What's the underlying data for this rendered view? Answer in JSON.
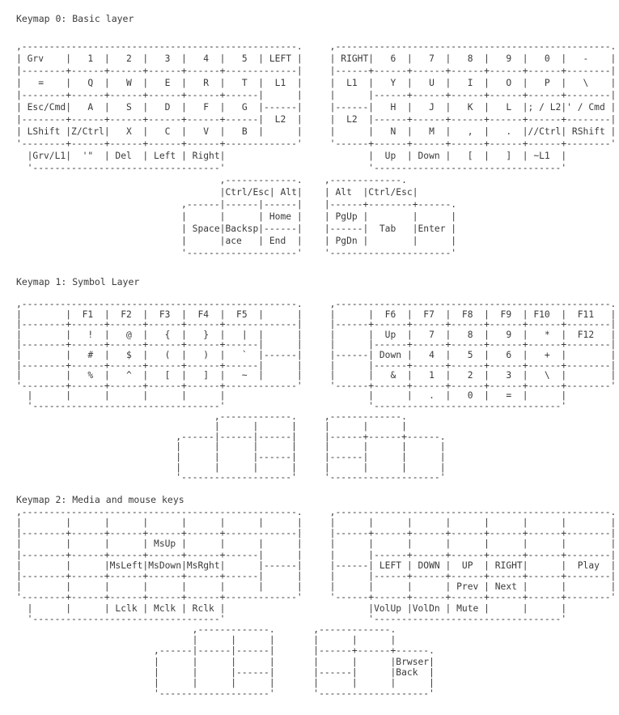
{
  "page": {
    "background": "#ffffff",
    "text_color": "#3a3a3a"
  },
  "sections": [
    {
      "title": "Keymap 0: Basic layer",
      "art": [
        ",--------------------------------------------------.     ,--------------------------------------------------.",
        "| Grv    |   1  |   2  |   3  |   4  |   5  | LEFT |     | RIGHT|   6  |   7  |   8  |   9  |   0  |   -    |",
        "|--------+------+------+------+------+-------------|     |------+------+------+------+------+------+--------|",
        "|   =    |   Q  |   W  |   E  |   R  |   T  |  L1  |     |  L1  |   Y  |   U  |   I  |   O  |   P  |   \\    |",
        "|--------+------+------+------+------+------|      |     |      |------+------+------+------+------+--------|",
        "| Esc/Cmd|   A  |   S  |   D  |   F  |   G  |------|     |------|   H  |   J  |   K  |   L  |; / L2|' / Cmd |",
        "|--------+------+------+------+------+------|  L2  |     |  L2  |------+------+------+------+------+--------|",
        "| LShift |Z/Ctrl|   X  |   C  |   V  |   B  |      |     |      |   N  |   M  |   ,  |   .  |//Ctrl| RShift |",
        "'--------+------+------+------+------+-------------'     '------+------+------+------+------+------+--------'",
        "  |Grv/L1|  '\"  | Del  | Left | Right|                          |  Up  | Down |   [  |   ]  | ~L1  |",
        "  '----------------------------------'                          '----------------------------------'",
        "                                     ,-------------.    ,-------------.",
        "                                     |Ctrl/Esc| Alt|    | Alt  |Ctrl/Esc|",
        "                              ,------|------|------|    |------+--------+------.",
        "                              |      |      | Home |    | PgUp |        |      |",
        "                              | Space|Backsp|------|    |------|  Tab   |Enter |",
        "                              |      |ace   | End  |    | PgDn |        |      |",
        "                              '--------------------'    '----------------------'"
      ]
    },
    {
      "title": "Keymap 1: Symbol Layer",
      "art": [
        ",--------------------------------------------------.     ,--------------------------------------------------.",
        "|        |  F1  |  F2  |  F3  |  F4  |  F5  |      |     |      |  F6  |  F7  |  F8  |  F9  | F10  |  F11   |",
        "|--------+------+------+------+------+-------------|     |------+------+------+------+------+------+--------|",
        "|        |   !  |   @  |   {  |   }  |   |  |      |     |      |  Up  |   7  |   8  |   9  |   *  |  F12   |",
        "|--------+------+------+------+------+------|      |     |      |------+------+------+------+------+--------|",
        "|        |   #  |   $  |   (  |   )  |   `  |------|     |------| Down |   4  |   5  |   6  |   +  |        |",
        "|--------+------+------+------+------+------|      |     |      |------+------+------+------+------+--------|",
        "|        |   %  |   ^  |   [  |   ]  |   ~  |      |     |      |   &  |   1  |   2  |   3  |   \\  |        |",
        "'--------+------+------+------+------+-------------'     '------+------+------+------+------+------+--------'",
        "  |      |      |      |      |      |                          |      |   .  |   0  |   =  |      |",
        "  '----------------------------------'                          '----------------------------------'",
        "                                    ,-------------.     ,-------------.",
        "                                    |      |      |     |      |      |",
        "                             ,------|------|------|     |------+------+------.",
        "                             |      |      |      |     |      |      |      |",
        "                             |      |      |------|     |------|      |      |",
        "                             |      |      |      |     |      |      |      |",
        "                             '--------------------'     '--------------------'"
      ]
    },
    {
      "title": "Keymap 2: Media and mouse keys",
      "art": [
        ",--------------------------------------------------.     ,--------------------------------------------------.",
        "|        |      |      |      |      |      |      |     |      |      |      |      |      |      |        |",
        "|--------+------+------+------+------+-------------|     |------+------+------+------+------+------+--------|",
        "|        |      |      | MsUp |      |      |      |     |      |      |      |      |      |      |        |",
        "|--------+------+------+------+------+------|      |     |      |------+------+------+------+------+--------|",
        "|        |      |MsLeft|MsDown|MsRght|      |------|     |------| LEFT | DOWN |  UP  | RIGHT|      |  Play  |",
        "|--------+------+------+------+------+------|      |     |      |------+------+------+------+------+--------|",
        "|        |      |      |      |      |      |      |     |      |      |      | Prev | Next |      |        |",
        "'--------+------+------+------+------+-------------'     '------+------+------+------+------+------+--------'",
        "  |      |      | Lclk | Mclk | Rclk |                          |VolUp |VolDn | Mute |      |      |",
        "  '----------------------------------'                          '----------------------------------'",
        "                                ,-------------.       ,-------------.",
        "                                |      |      |       |      |      |",
        "                         ,------|------|------|       |------+------+------.",
        "                         |      |      |      |       |      |      |Brwser|",
        "                         |      |      |------|       |------|      |Back  |",
        "                         |      |      |      |       |      |      |      |",
        "                         '--------------------'       '--------------------'"
      ]
    }
  ]
}
